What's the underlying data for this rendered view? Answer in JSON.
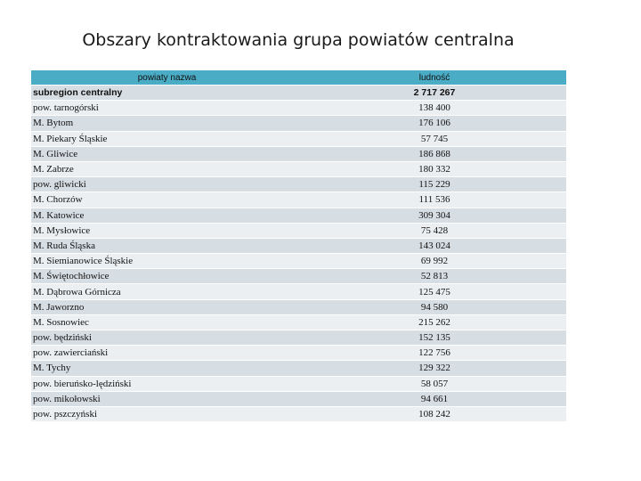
{
  "title": "Obszary kontraktowania grupa powiatów centralna",
  "table": {
    "header": [
      "powiaty nazwa",
      "ludność"
    ],
    "rows": [
      [
        "subregion centralny",
        "2 717 267"
      ],
      [
        "pow. tarnogórski",
        "138 400"
      ],
      [
        "M. Bytom",
        "176 106"
      ],
      [
        "M. Piekary Śląskie",
        "57 745"
      ],
      [
        "M. Gliwice",
        "186 868"
      ],
      [
        "M. Zabrze",
        "180 332"
      ],
      [
        "pow. gliwicki",
        "115 229"
      ],
      [
        "M. Chorzów",
        "111 536"
      ],
      [
        "M. Katowice",
        "309 304"
      ],
      [
        "M. Mysłowice",
        "75 428"
      ],
      [
        "M. Ruda Śląska",
        "143 024"
      ],
      [
        "M. Siemianowice Śląskie",
        "69 992"
      ],
      [
        "M. Świętochłowice",
        "52 813"
      ],
      [
        "M. Dąbrowa Górnicza",
        "125 475"
      ],
      [
        "M. Jaworzno",
        "94 580"
      ],
      [
        "M. Sosnowiec",
        "215 262"
      ],
      [
        "pow. będziński",
        "152 135"
      ],
      [
        "pow. zawierciański",
        "122 756"
      ],
      [
        "M. Tychy",
        "129 322"
      ],
      [
        "pow. bieruńsko-lędziński",
        "58 057"
      ],
      [
        "pow. mikołowski",
        "94 661"
      ],
      [
        "pow. pszczyński",
        "108 242"
      ]
    ]
  }
}
